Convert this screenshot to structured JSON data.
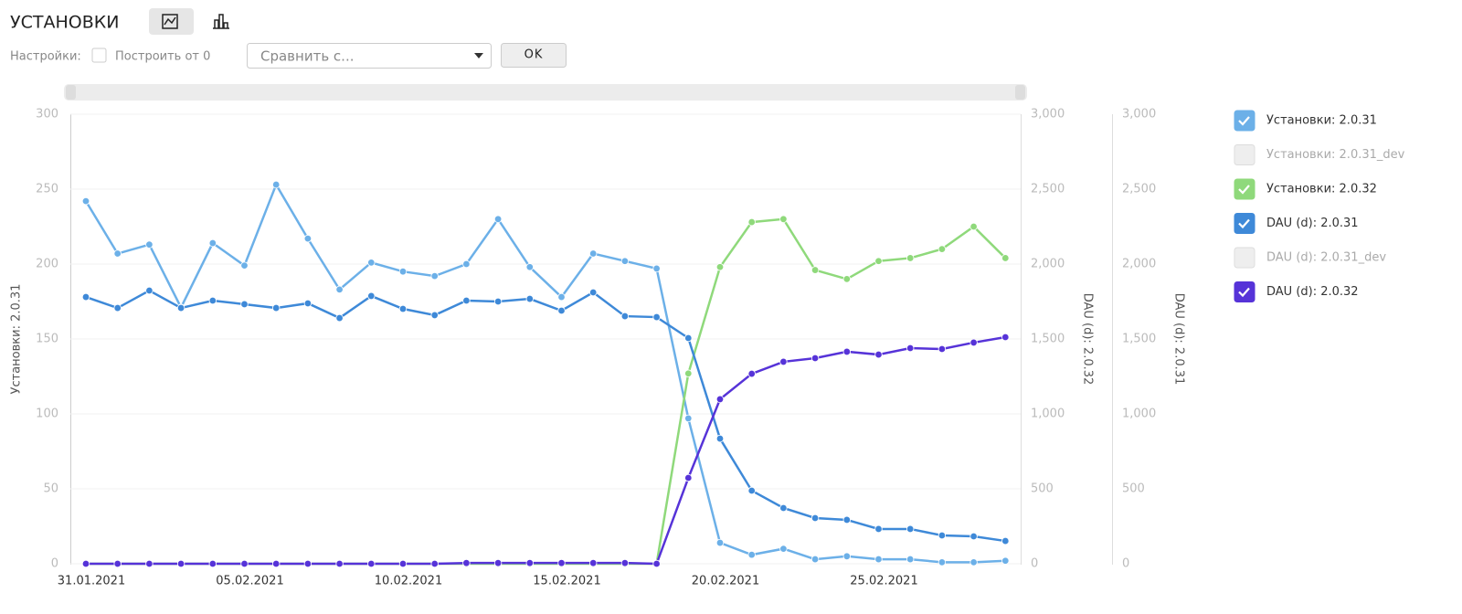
{
  "toolbar": {
    "title": "УСТАНОВКИ",
    "settings_label": "Настройки:",
    "checkbox_label": "Построить от 0",
    "compare_placeholder": "Сравнить с...",
    "ok_button": "OK"
  },
  "chart_data": {
    "type": "line",
    "categories": [
      "31.01.2021",
      null,
      null,
      null,
      null,
      "05.02.2021",
      null,
      null,
      null,
      null,
      "10.02.2021",
      null,
      null,
      null,
      null,
      "15.02.2021",
      null,
      null,
      null,
      null,
      "20.02.2021",
      null,
      null,
      null,
      null,
      "25.02.2021",
      null,
      null,
      null,
      null
    ],
    "ylabel": "Установки: 2.0.31",
    "ylim": [
      0,
      300
    ],
    "yticks": [
      0,
      50,
      100,
      150,
      200,
      250,
      300
    ],
    "y2label": "DAU (d): 2.0.32",
    "y2lim": [
      0,
      3000
    ],
    "y2ticks": [
      0,
      500,
      {
        "value": 1000,
        "label": "1,000"
      },
      {
        "value": 1500,
        "label": "1,500"
      },
      {
        "value": 2000,
        "label": "2,000"
      },
      {
        "value": 2500,
        "label": "2,500"
      },
      {
        "value": 3000,
        "label": "3,000"
      }
    ],
    "y3label": "DAU (d): 2.0.31",
    "y3lim": [
      0,
      3000
    ],
    "y3ticks": [
      0,
      500,
      {
        "value": 1000,
        "label": "1,000"
      },
      {
        "value": 1500,
        "label": "1,500"
      },
      {
        "value": 2000,
        "label": "2,000"
      },
      {
        "value": 2500,
        "label": "2,500"
      },
      {
        "value": 3000,
        "label": "3,000"
      }
    ],
    "grid": true,
    "series": [
      {
        "name": "Установки: 2.0.31",
        "color": "#6cb0e8",
        "checked": true,
        "axis": "y",
        "values": [
          242,
          207,
          213,
          171,
          214,
          199,
          253,
          217,
          183,
          201,
          195,
          192,
          200,
          230,
          198,
          178,
          207,
          202,
          197,
          97,
          14,
          6,
          10,
          3,
          5,
          3,
          3,
          1,
          1,
          2
        ]
      },
      {
        "name": "Установки: 2.0.31_dev",
        "color": "#eeeeee",
        "checked": false,
        "axis": "y",
        "values": [
          null,
          null,
          null,
          null,
          null,
          null,
          null,
          null,
          null,
          null,
          null,
          null,
          null,
          null,
          null,
          null,
          null,
          null,
          null,
          null,
          null,
          null,
          null,
          null,
          null,
          null,
          null,
          null,
          null,
          null
        ]
      },
      {
        "name": "Установки: 2.0.32",
        "color": "#8fd97b",
        "checked": true,
        "axis": "y",
        "values": [
          0,
          0,
          0,
          0,
          0,
          0,
          0,
          0,
          0,
          0,
          0,
          0,
          0,
          0,
          0,
          0,
          0,
          0,
          0,
          127,
          198,
          228,
          230,
          196,
          190,
          202,
          204,
          210,
          225,
          204
        ]
      },
      {
        "name": "DAU (d): 2.0.31",
        "color": "#3e89d8",
        "checked": true,
        "axis": "y3",
        "values": [
          1780,
          1707,
          1823,
          1707,
          1756,
          1732,
          1707,
          1738,
          1640,
          1787,
          1701,
          1659,
          1756,
          1750,
          1768,
          1689,
          1811,
          1652,
          1646,
          1506,
          835,
          488,
          372,
          305,
          293,
          232,
          232,
          189,
          183,
          152
        ]
      },
      {
        "name": "DAU (d): 2.0.31_dev",
        "color": "#eeeeee",
        "checked": false,
        "axis": "y3",
        "values": [
          null,
          null,
          null,
          null,
          null,
          null,
          null,
          null,
          null,
          null,
          null,
          null,
          null,
          null,
          null,
          null,
          null,
          null,
          null,
          null,
          null,
          null,
          null,
          null,
          null,
          null,
          null,
          null,
          null,
          null
        ]
      },
      {
        "name": "DAU (d): 2.0.32",
        "color": "#5633d8",
        "checked": true,
        "axis": "y2",
        "values": [
          0,
          0,
          0,
          0,
          0,
          0,
          0,
          0,
          0,
          0,
          0,
          0,
          5,
          5,
          5,
          5,
          5,
          5,
          0,
          573,
          1098,
          1268,
          1348,
          1372,
          1415,
          1396,
          1439,
          1433,
          1476,
          1512
        ]
      }
    ]
  }
}
